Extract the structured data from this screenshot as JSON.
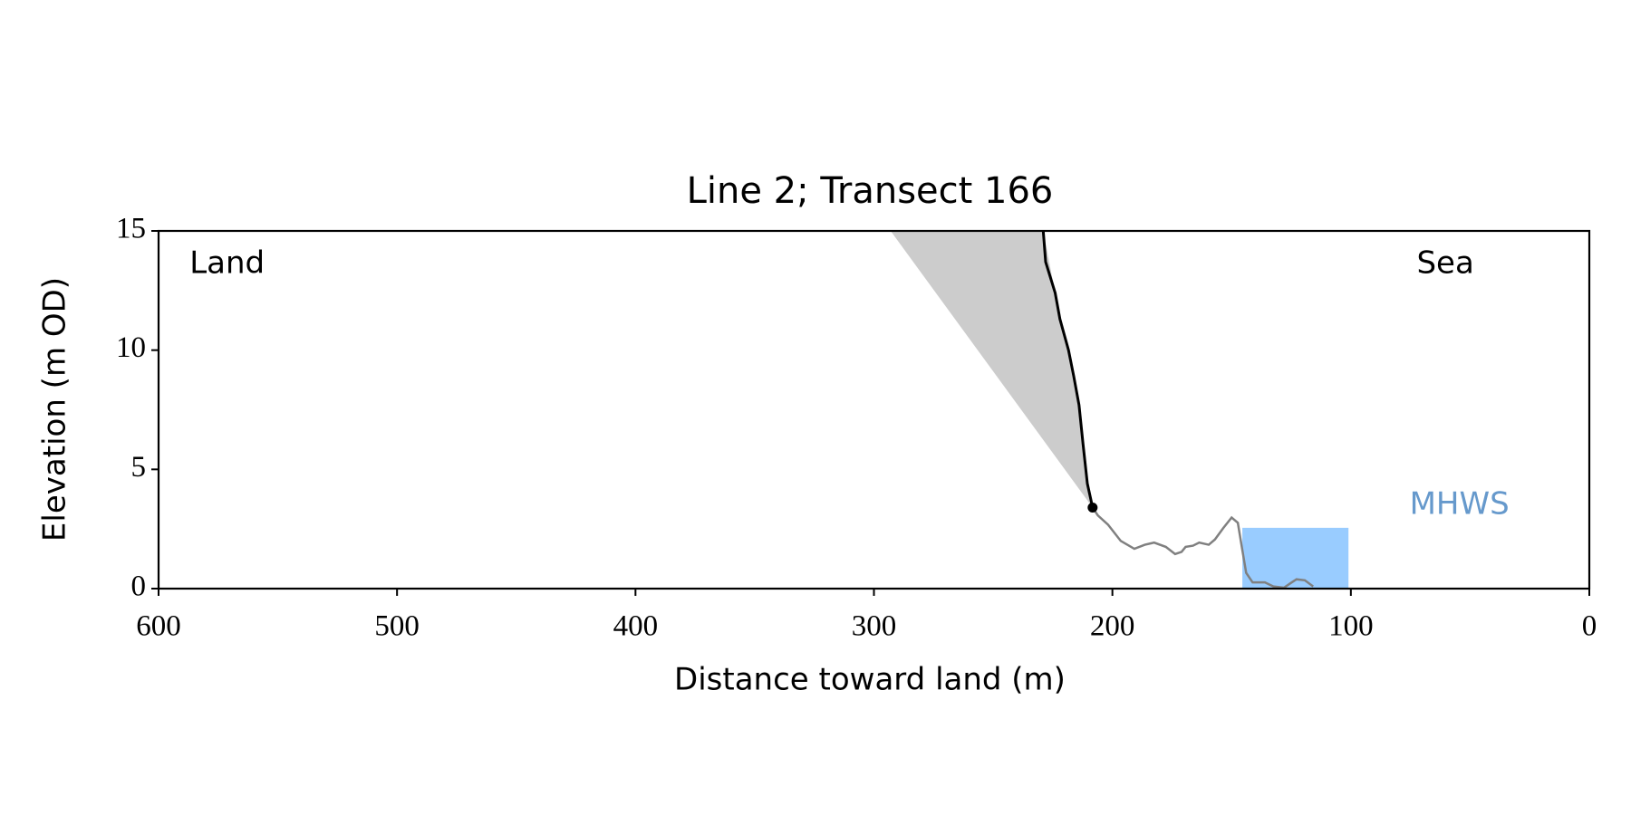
{
  "chart_data": {
    "type": "line",
    "title": "Line 2; Transect 166",
    "xlabel": "Distance toward land (m)",
    "ylabel": "Elevation (m OD)",
    "xlim": [
      600,
      0
    ],
    "xticks": [
      600,
      500,
      400,
      300,
      200,
      100,
      0
    ],
    "ylim": [
      0,
      15
    ],
    "yticks": [
      0,
      5,
      10,
      15
    ],
    "series": [
      {
        "color": "#000000",
        "x": [
          229,
          228,
          224,
          222,
          218.4,
          216.2,
          214,
          212.3,
          210.5,
          208.3
        ],
        "values": [
          15,
          13.7,
          12.4,
          11.3,
          10,
          8.9,
          7.7,
          6.05,
          4.4,
          3.4
        ]
      },
      {
        "color": "#808080",
        "x": [
          208.3,
          206.1,
          201.8,
          196.5,
          190.8,
          186.4,
          182.5,
          177.6,
          173.7,
          171,
          169.3,
          166.2,
          163.6,
          159.6,
          157,
          153.5,
          150,
          147.4,
          145.6,
          143.9,
          141.2,
          136,
          132.5,
          128,
          125.4,
          122.8,
          119.3,
          115.8
        ],
        "values": [
          3.4,
          3.07,
          2.68,
          2.0,
          1.67,
          1.84,
          1.93,
          1.75,
          1.45,
          1.54,
          1.75,
          1.8,
          1.93,
          1.84,
          2.06,
          2.54,
          2.98,
          2.76,
          1.67,
          0.66,
          0.26,
          0.26,
          0.09,
          0.04,
          0.22,
          0.39,
          0.35,
          0.09
        ]
      }
    ],
    "fill": {
      "color": "#cccccc",
      "x": [
        293,
        229,
        224,
        218.4,
        214,
        212.3,
        210.5,
        208.3
      ],
      "y": [
        15,
        15,
        12.4,
        10,
        7.7,
        6.05,
        4.4,
        3.4
      ]
    },
    "band": {
      "color": "#99ccff",
      "x": [
        145.5,
        101
      ],
      "y": [
        0,
        2.55
      ]
    },
    "marker": {
      "x": 208.3,
      "y": 3.4,
      "color": "#000000"
    },
    "annotations": [
      {
        "text": "Land",
        "x": 587,
        "y": 13.6,
        "color": "#000000"
      },
      {
        "text": "Sea",
        "x": 72.4,
        "y": 13.6,
        "color": "#000000"
      },
      {
        "text": "MHWS",
        "x": 75.4,
        "y": 3.5,
        "color": "#6699cc"
      }
    ]
  }
}
